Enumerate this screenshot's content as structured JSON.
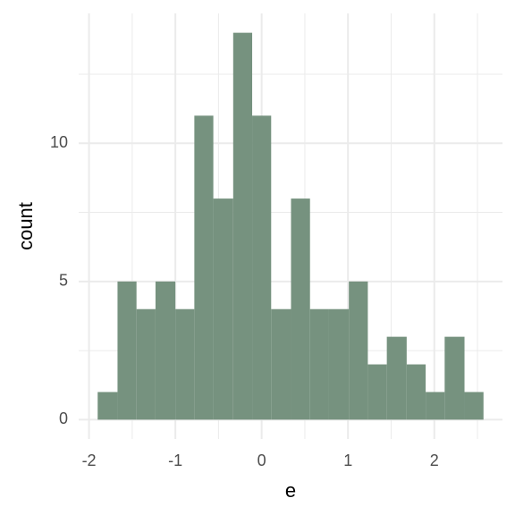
{
  "chart_data": {
    "type": "histogram",
    "x_label": "e",
    "y_label": "count",
    "bins": [
      -1.9,
      -1.67,
      -1.45,
      -1.23,
      -1.0,
      -0.78,
      -0.56,
      -0.33,
      -0.11,
      0.11,
      0.34,
      0.56,
      0.78,
      1.01,
      1.23,
      1.45,
      1.68,
      1.9,
      2.12,
      2.35,
      2.57
    ],
    "values": [
      1,
      5,
      4,
      5,
      4,
      11,
      8,
      14,
      11,
      4,
      8,
      4,
      4,
      5,
      2,
      3,
      2,
      1,
      3,
      1
    ],
    "color": "#76927f",
    "xlim": [
      -2.12,
      2.79
    ],
    "ylim": [
      -0.7,
      14.7
    ],
    "xticks": [
      -2,
      -1,
      0,
      1,
      2
    ],
    "yticks": [
      0,
      5,
      10
    ],
    "x_minor_ticks": [
      -1.5,
      -0.5,
      0.5,
      1.5,
      2.5
    ],
    "y_minor_ticks": [
      2.5,
      7.5,
      12.5
    ],
    "grid": true
  }
}
